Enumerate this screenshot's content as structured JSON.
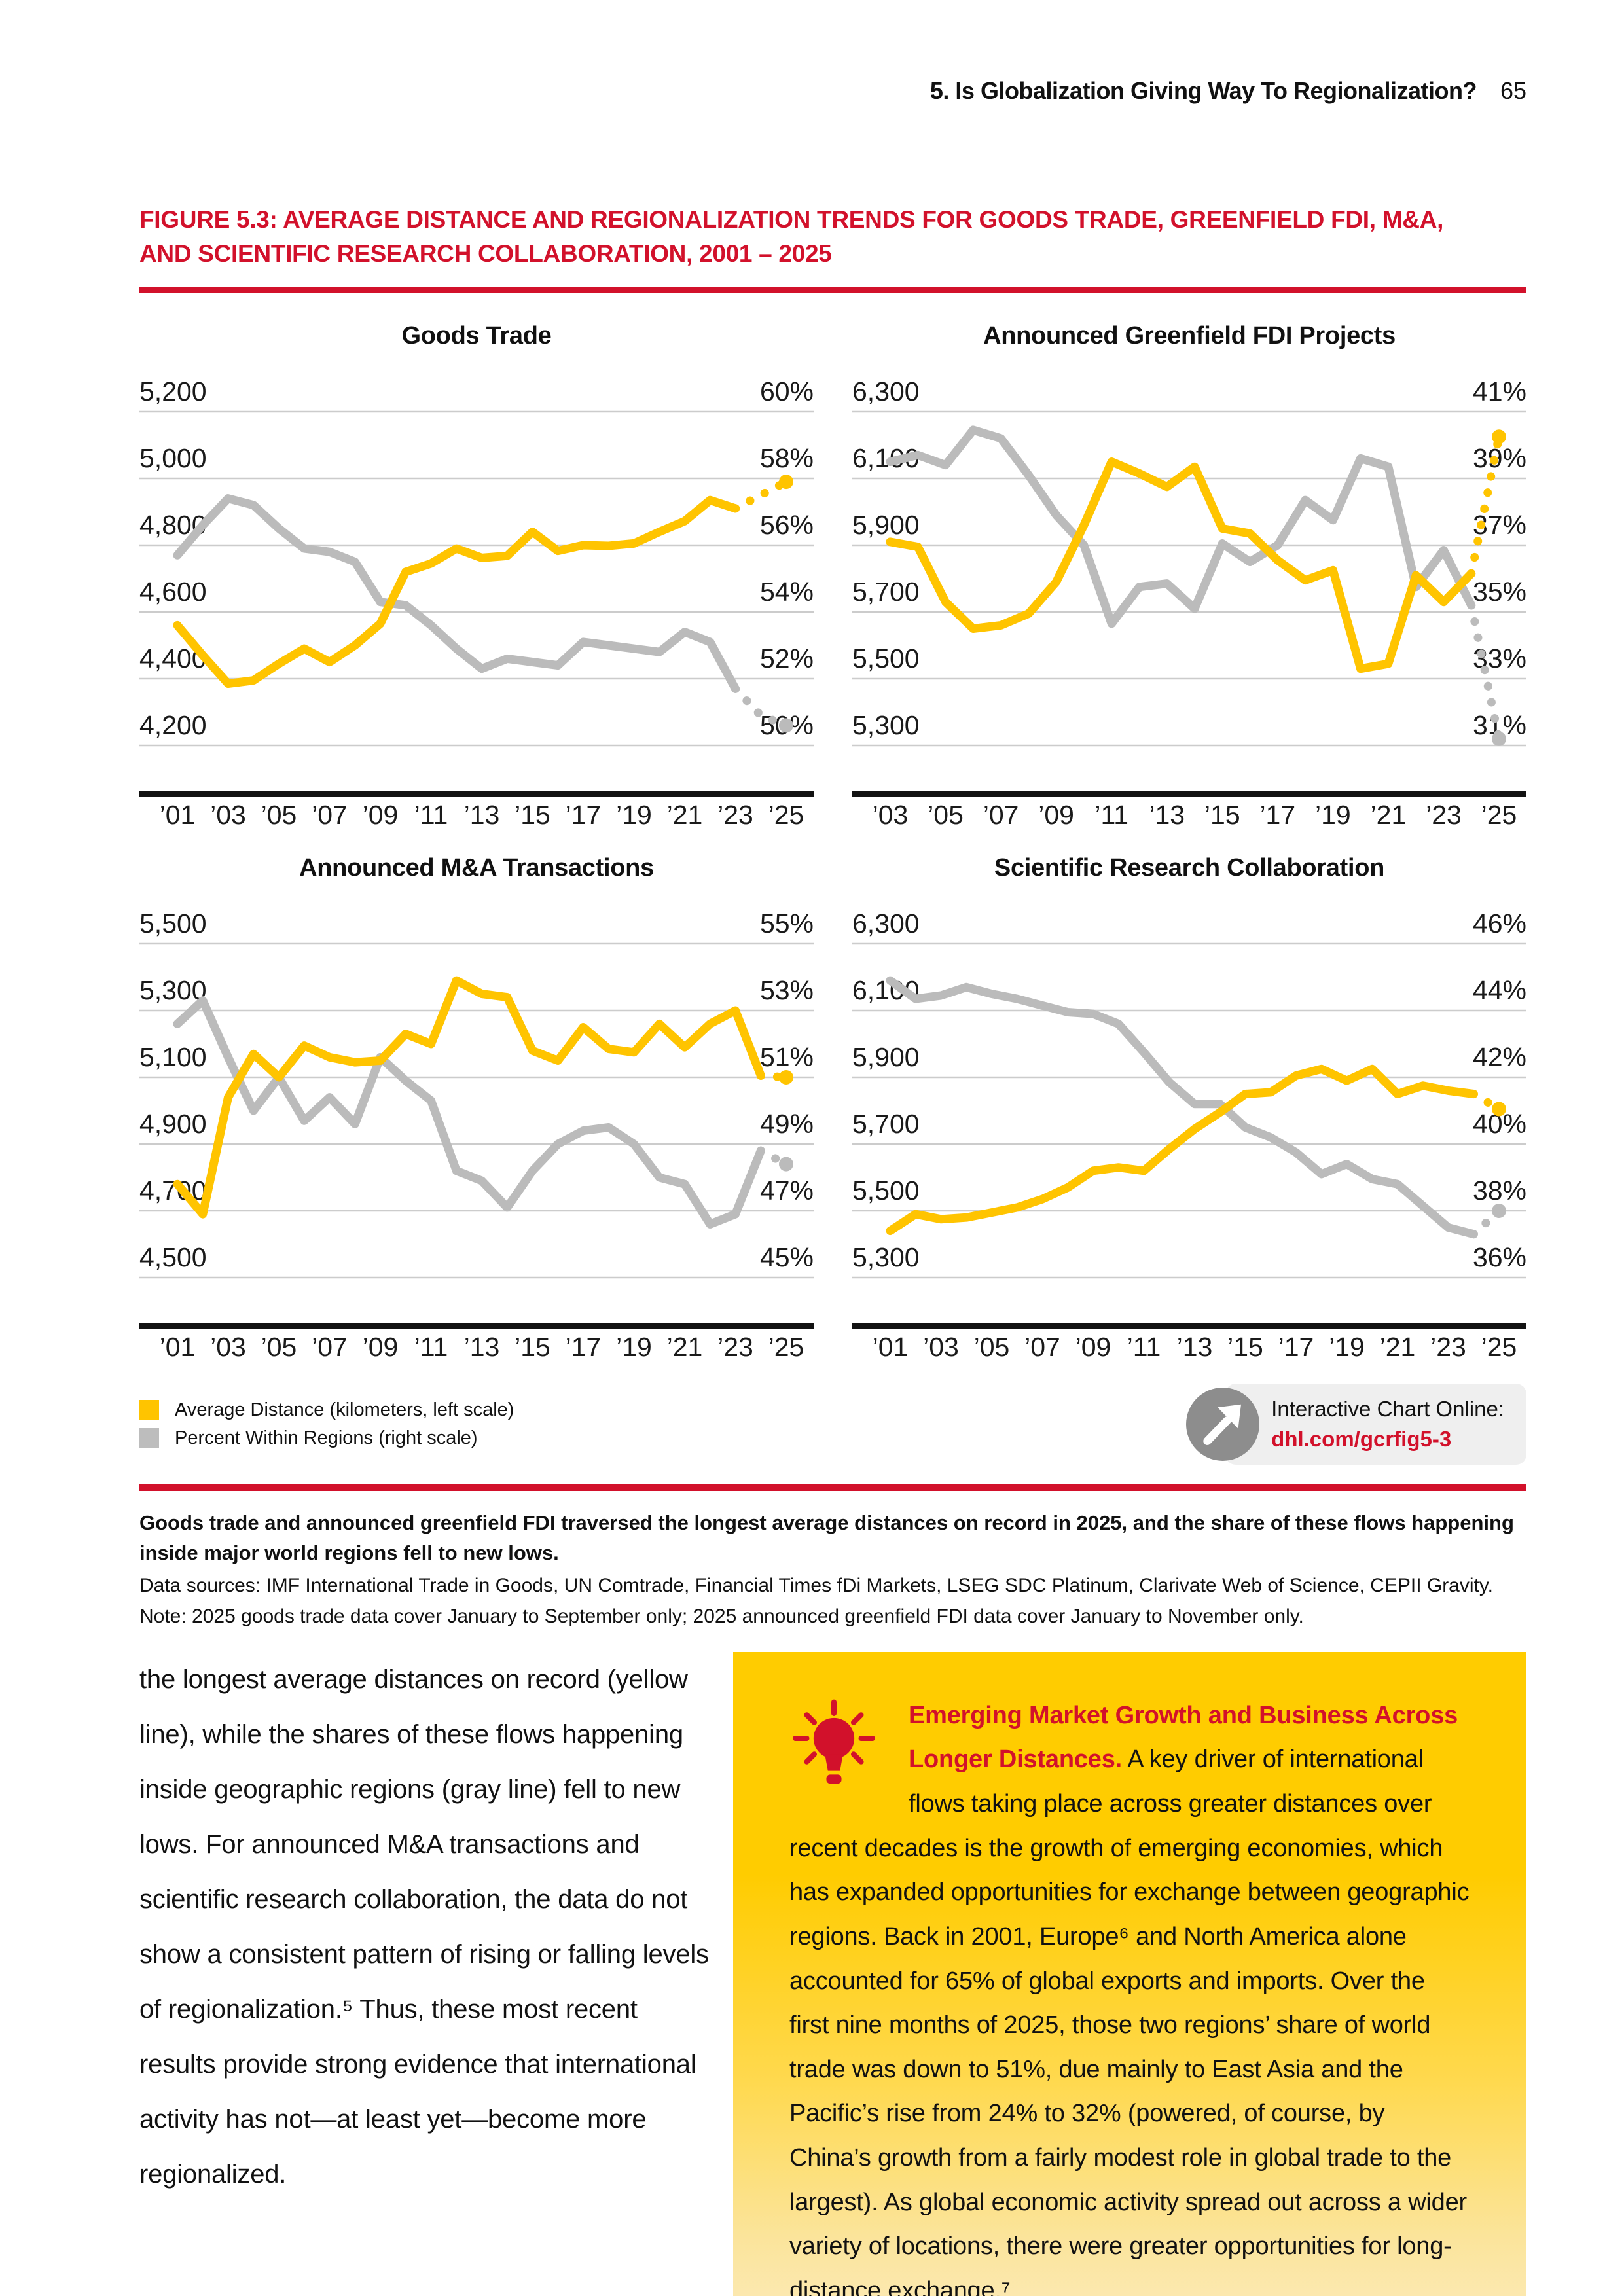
{
  "header": {
    "title": "5. Is Globalization Giving Way To Regionalization?",
    "page_number": "65"
  },
  "figure": {
    "title": "FIGURE 5.3: AVERAGE DISTANCE AND REGIONALIZATION TRENDS FOR GOODS TRADE, GREENFIELD FDI, M&A, AND SCIENTIFIC RESEARCH COLLABORATION, 2001 – 2025"
  },
  "legend": {
    "items": [
      {
        "label": "Average Distance (kilometers, left scale)",
        "color": "yellow"
      },
      {
        "label": "Percent Within Regions (right scale)",
        "color": "gray"
      }
    ]
  },
  "interactive": {
    "label": "Interactive Chart Online:",
    "url": "dhl.com/gcrfig5-3"
  },
  "caption": {
    "headline": "Goods trade and announced greenfield FDI traversed the longest average distances on record in 2025, and the share of these flows happening inside major world regions fell to new lows.",
    "sources": "Data sources: IMF International Trade in Goods, UN Comtrade, Financial Times fDi Markets, LSEG SDC Platinum, Clarivate Web of Science, CEPII Gravity.",
    "note": "Note: 2025 goods trade data cover January to September only; 2025 announced greenfield FDI data cover January to November only."
  },
  "body": {
    "left_text": "the longest average distances on record (yellow line), while the shares of these flows happening inside geographic regions (gray line) fell to new lows. For announced M&A transactions and scientific research collaboration, the data do not show a consistent pattern of rising or falling levels of regionalization.⁵ Thus, these most recent results provide strong evidence that international activity has not—at least yet—become more regionalized.",
    "callout": {
      "title": "Emerging Market Growth and Business Across Longer Distances.",
      "text": "A key driver of international flows taking place across greater distances over recent decades is the growth of emerging economies, which has expanded opportunities for exchange between geographic regions. Back in 2001, Europe⁶ and North America alone accounted for 65% of global exports and imports. Over the first nine months of 2025, those two regions’ share of world trade was down to 51%, due mainly to East Asia and the Pacific’s rise from 24% to 32% (powered, of course, by China’s growth from a fairly modest role in global trade to the largest). As global economic activity spread out across a wider variety of locations, there were greater opportunities for long-distance exchange.⁷"
    }
  },
  "colors": {
    "yellow": "#FFC400",
    "gray": "#BBBBBB",
    "red": "#D2112B",
    "gridline": "#CCCCCC",
    "text": "#1A1A1A",
    "axis": "#121212",
    "badge_bg": "#EFEFEF",
    "badge_circle": "#8D8D8D",
    "callout_top": "#FFCC00"
  },
  "chart_data": [
    {
      "type": "line",
      "title": "Goods Trade",
      "years": [
        2001,
        2002,
        2003,
        2004,
        2005,
        2006,
        2007,
        2008,
        2009,
        2010,
        2011,
        2012,
        2013,
        2014,
        2015,
        2016,
        2017,
        2018,
        2019,
        2020,
        2021,
        2022,
        2023,
        2024,
        2025
      ],
      "x_tick_labels": [
        "’01",
        "’03",
        "’05",
        "’07",
        "’09",
        "’11",
        "’13",
        "’15",
        "’17",
        "’19",
        "’21",
        "’23",
        "’25"
      ],
      "left_axis": {
        "label": "Average Distance (kilometers)",
        "min": 4200,
        "max": 5200,
        "tick_labels": [
          "5,200",
          "5,000",
          "4,800",
          "4,600",
          "4,400",
          "4,200"
        ]
      },
      "right_axis": {
        "label": "Percent Within Regions",
        "min": 50,
        "max": 60,
        "tick_labels": [
          "60%",
          "58%",
          "56%",
          "54%",
          "52%",
          "50%"
        ]
      },
      "series": [
        {
          "name": "Percent Within Regions",
          "axis": "right",
          "color": "gray",
          "dotted_from_year": 2023,
          "values": [
            55.7,
            56.6,
            57.4,
            57.2,
            56.5,
            55.9,
            55.8,
            55.5,
            54.3,
            54.2,
            53.6,
            52.9,
            52.3,
            52.6,
            52.5,
            52.4,
            53.1,
            53.0,
            52.9,
            52.8,
            53.4,
            53.1,
            51.7,
            50.9,
            50.6
          ]
        },
        {
          "name": "Average Distance",
          "axis": "left",
          "color": "yellow",
          "dotted_from_year": 2023,
          "values": [
            4560,
            4470,
            4385,
            4395,
            4445,
            4490,
            4450,
            4500,
            4565,
            4720,
            4745,
            4790,
            4762,
            4768,
            4840,
            4783,
            4800,
            4798,
            4805,
            4840,
            4872,
            4935,
            4910,
            4950,
            4990
          ]
        }
      ]
    },
    {
      "type": "line",
      "title": "Announced Greenfield FDI Projects",
      "years": [
        2003,
        2004,
        2005,
        2006,
        2007,
        2008,
        2009,
        2010,
        2011,
        2012,
        2013,
        2014,
        2015,
        2016,
        2017,
        2018,
        2019,
        2020,
        2021,
        2022,
        2023,
        2024,
        2025
      ],
      "x_tick_labels": [
        "’03",
        "’05",
        "’07",
        "’09",
        "’11",
        "’13",
        "’15",
        "’17",
        "’19",
        "’21",
        "’23",
        "’25"
      ],
      "left_axis": {
        "label": "Average Distance (kilometers)",
        "min": 5300,
        "max": 6300,
        "tick_labels": [
          "6,300",
          "6,100",
          "5,900",
          "5,700",
          "5,500",
          "5,300"
        ]
      },
      "right_axis": {
        "label": "Percent Within Regions",
        "min": 31,
        "max": 41,
        "tick_labels": [
          "41%",
          "39%",
          "37%",
          "35%",
          "33%",
          "31%"
        ]
      },
      "series": [
        {
          "name": "Percent Within Regions",
          "axis": "right",
          "color": "gray",
          "dotted_from_year": 2024,
          "values": [
            39.5,
            39.7,
            39.4,
            40.45,
            40.2,
            39.1,
            37.9,
            37.0,
            34.65,
            35.75,
            35.85,
            35.1,
            37.05,
            36.5,
            37.0,
            38.35,
            37.75,
            39.6,
            39.35,
            35.75,
            36.85,
            35.2,
            31.2
          ]
        },
        {
          "name": "Average Distance",
          "axis": "left",
          "color": "yellow",
          "dotted_from_year": 2024,
          "values": [
            5910,
            5895,
            5730,
            5650,
            5660,
            5695,
            5790,
            5960,
            6150,
            6115,
            6075,
            6135,
            5950,
            5935,
            5855,
            5795,
            5825,
            5530,
            5545,
            5810,
            5730,
            5815,
            6225
          ]
        }
      ]
    },
    {
      "type": "line",
      "title": "Announced M&A Transactions",
      "years": [
        2001,
        2002,
        2003,
        2004,
        2005,
        2006,
        2007,
        2008,
        2009,
        2010,
        2011,
        2012,
        2013,
        2014,
        2015,
        2016,
        2017,
        2018,
        2019,
        2020,
        2021,
        2022,
        2023,
        2024,
        2025
      ],
      "x_tick_labels": [
        "’01",
        "’03",
        "’05",
        "’07",
        "’09",
        "’11",
        "’13",
        "’15",
        "’17",
        "’19",
        "’21",
        "’23",
        "’25"
      ],
      "left_axis": {
        "label": "Average Distance (kilometers)",
        "min": 4500,
        "max": 5500,
        "tick_labels": [
          "5,500",
          "5,300",
          "5,100",
          "4,900",
          "4,700",
          "4,500"
        ]
      },
      "right_axis": {
        "label": "Percent Within Regions",
        "min": 45,
        "max": 55,
        "tick_labels": [
          "55%",
          "53%",
          "51%",
          "49%",
          "47%",
          "45%"
        ]
      },
      "series": [
        {
          "name": "Percent Within Regions",
          "axis": "right",
          "color": "gray",
          "dotted_from_year": 2024,
          "values": [
            52.6,
            53.3,
            51.6,
            50.0,
            51.0,
            49.7,
            50.4,
            49.6,
            51.6,
            50.9,
            50.3,
            48.2,
            47.9,
            47.1,
            48.2,
            49.0,
            49.4,
            49.5,
            49.0,
            48.0,
            47.8,
            46.6,
            46.9,
            48.8,
            48.4
          ]
        },
        {
          "name": "Average Distance",
          "axis": "left",
          "color": "yellow",
          "dotted_from_year": 2024,
          "values": [
            4780,
            4690,
            5040,
            5170,
            5100,
            5195,
            5160,
            5145,
            5150,
            5230,
            5200,
            5390,
            5350,
            5340,
            5180,
            5150,
            5250,
            5185,
            5175,
            5260,
            5190,
            5260,
            5300,
            5105,
            5100
          ]
        }
      ]
    },
    {
      "type": "line",
      "title": "Scientific Research Collaboration",
      "years": [
        2001,
        2002,
        2003,
        2004,
        2005,
        2006,
        2007,
        2008,
        2009,
        2010,
        2011,
        2012,
        2013,
        2014,
        2015,
        2016,
        2017,
        2018,
        2019,
        2020,
        2021,
        2022,
        2023,
        2024,
        2025
      ],
      "x_tick_labels": [
        "’01",
        "’03",
        "’05",
        "’07",
        "’09",
        "’11",
        "’13",
        "’15",
        "’17",
        "’19",
        "’21",
        "’23",
        "’25"
      ],
      "left_axis": {
        "label": "Average Distance (kilometers)",
        "min": 5300,
        "max": 6300,
        "tick_labels": [
          "6,300",
          "6,100",
          "5,900",
          "5,700",
          "5,500",
          "5,300"
        ]
      },
      "right_axis": {
        "label": "Percent Within Regions",
        "min": 36,
        "max": 46,
        "tick_labels": [
          "46%",
          "44%",
          "42%",
          "40%",
          "38%",
          "36%"
        ]
      },
      "series": [
        {
          "name": "Percent Within Regions",
          "axis": "right",
          "color": "gray",
          "dotted_from_year": 2024,
          "values": [
            44.9,
            44.35,
            44.45,
            44.7,
            44.5,
            44.35,
            44.15,
            43.95,
            43.9,
            43.6,
            42.75,
            41.85,
            41.2,
            41.2,
            40.5,
            40.2,
            39.75,
            39.1,
            39.4,
            38.95,
            38.8,
            38.15,
            37.5,
            37.3,
            38.0
          ]
        },
        {
          "name": "Average Distance",
          "axis": "left",
          "color": "yellow",
          "dotted_from_year": 2024,
          "values": [
            5440,
            5490,
            5475,
            5480,
            5495,
            5510,
            5535,
            5570,
            5620,
            5630,
            5620,
            5685,
            5745,
            5795,
            5850,
            5855,
            5905,
            5925,
            5890,
            5925,
            5850,
            5875,
            5860,
            5850,
            5805
          ]
        }
      ]
    }
  ]
}
